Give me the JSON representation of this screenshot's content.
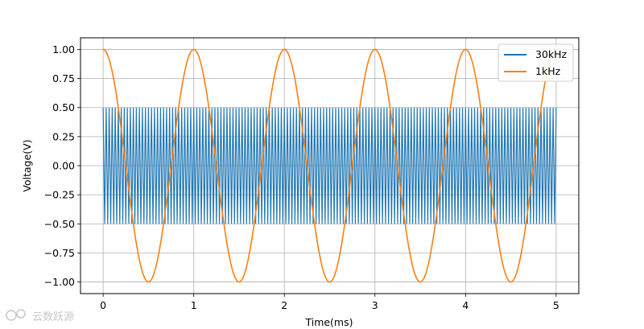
{
  "chart_data": {
    "type": "line",
    "title": "",
    "xlabel": "Time(ms)",
    "ylabel": "Voltage(V)",
    "xlim": [
      -0.25,
      5.25
    ],
    "ylim": [
      -1.1,
      1.1
    ],
    "xticks": [
      "0",
      "1",
      "2",
      "3",
      "4",
      "5"
    ],
    "yticks": [
      "1.00",
      "0.75",
      "0.50",
      "0.25",
      "0.00",
      "−0.25",
      "−0.50",
      "−0.75",
      "−1.00"
    ],
    "grid": true,
    "legend_position": "upper-right",
    "series": [
      {
        "name": "30kHz",
        "color": "#1f77b4",
        "function": "square-like oscillation",
        "amplitude": 0.5,
        "frequency_khz": 30,
        "x_start": 0,
        "x_end": 5
      },
      {
        "name": "1kHz",
        "color": "#ff7f0e",
        "function": "cosine",
        "amplitude": 1.0,
        "frequency_khz": 1,
        "x_start": 0,
        "x_end": 5
      }
    ]
  },
  "watermark": "云数跃源"
}
